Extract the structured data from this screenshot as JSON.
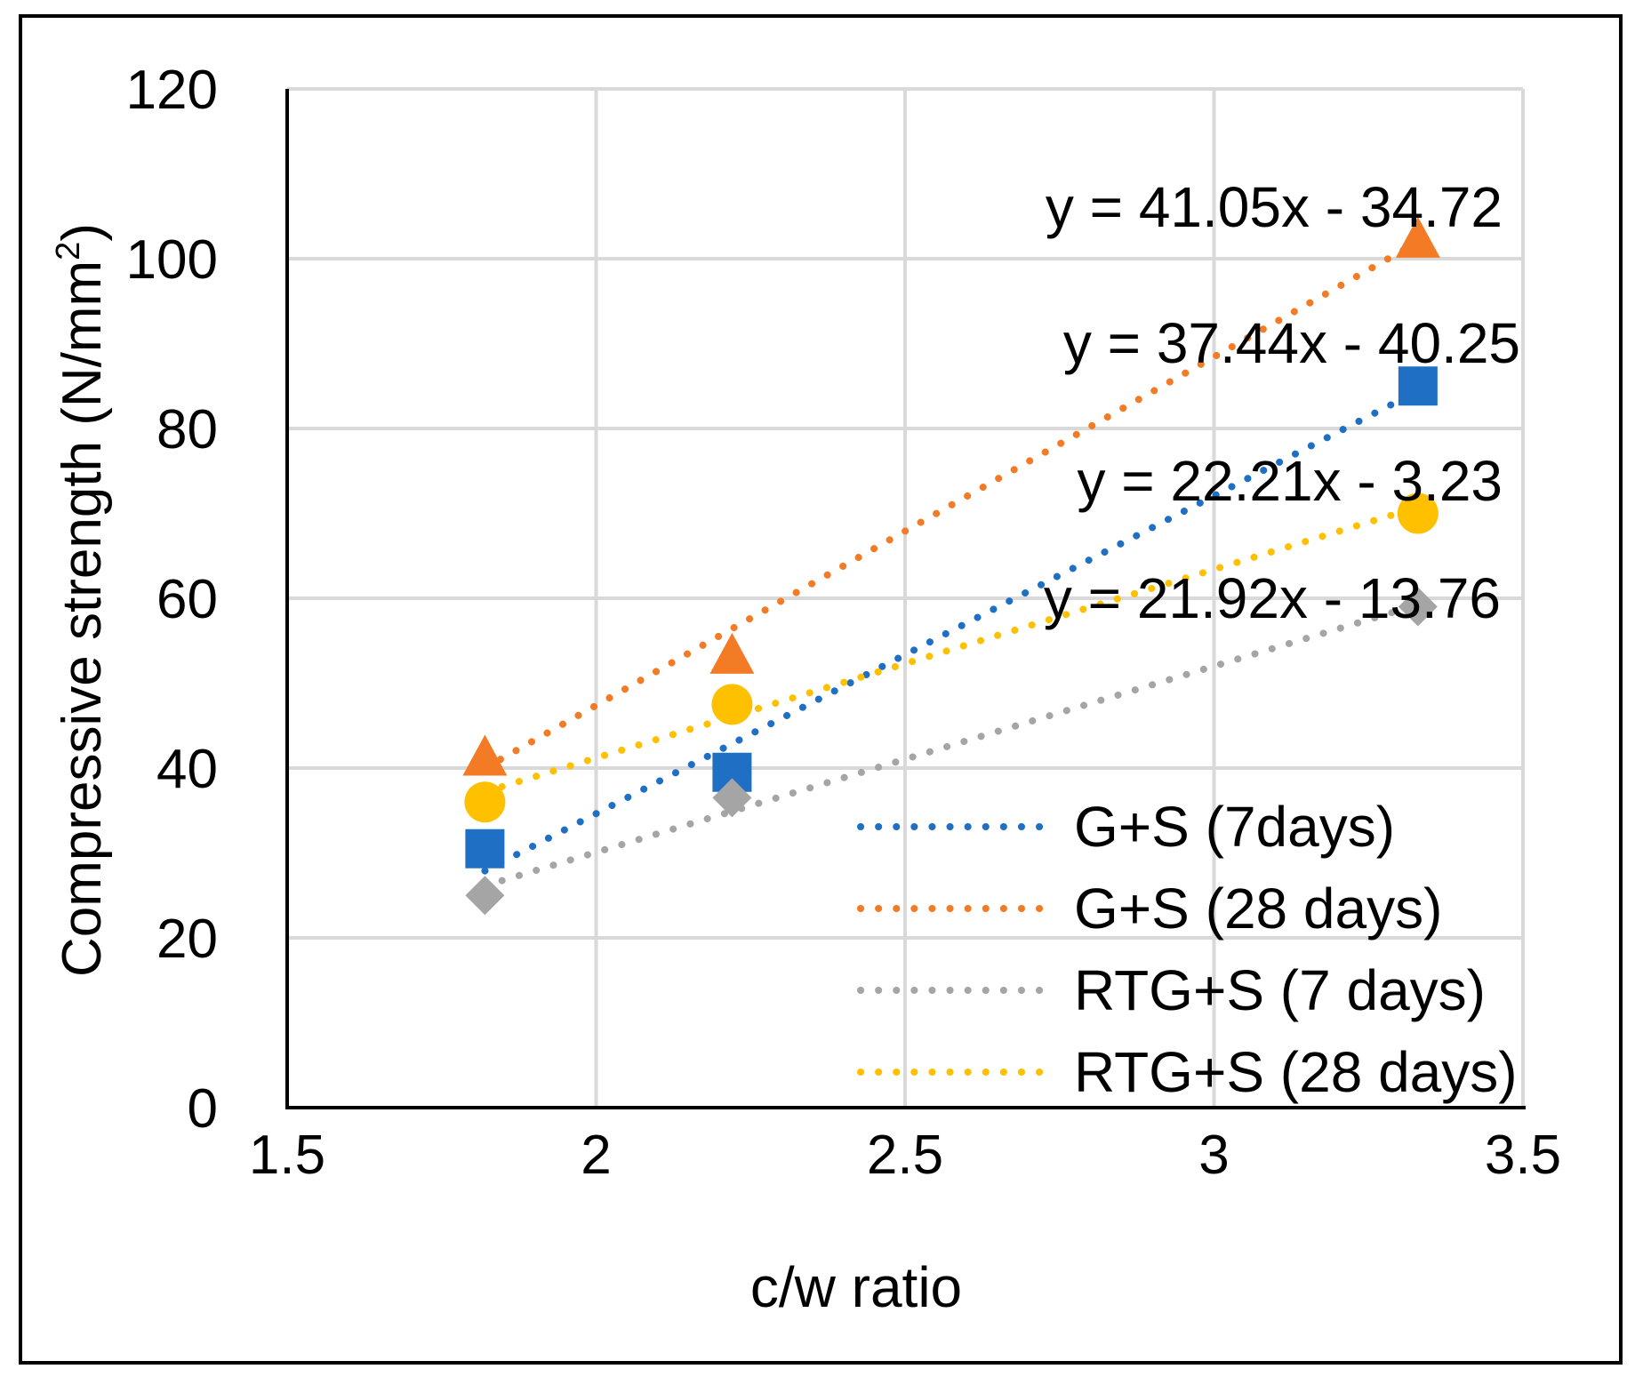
{
  "chart_data": {
    "type": "scatter",
    "xlabel": "c/w ratio",
    "ylabel": "Compressive strength (N/mm",
    "ylabel_sup": "2",
    "ylabel_close": ")",
    "xlim": [
      1.5,
      3.5
    ],
    "ylim": [
      0,
      120
    ],
    "x_ticks": [
      1.5,
      2,
      2.5,
      3,
      3.5
    ],
    "x_tick_labels": [
      "1.5",
      "2",
      "2.5",
      "3",
      "3.5"
    ],
    "y_ticks": [
      0,
      20,
      40,
      60,
      80,
      100,
      120
    ],
    "y_tick_labels": [
      "0",
      "20",
      "40",
      "60",
      "80",
      "100",
      "120"
    ],
    "grid": true,
    "legend_position": "bottom-right",
    "series": [
      {
        "name": "G+S (7days)",
        "color": "#1f6fc5",
        "marker": "square",
        "x": [
          1.82,
          2.22,
          3.33
        ],
        "y": [
          30.5,
          39.5,
          85.0
        ],
        "trend_slope": 37.44,
        "trend_intercept": -40.25,
        "equation": "y = 37.44x - 40.25"
      },
      {
        "name": "G+S (28 days)",
        "color": "#f47b25",
        "marker": "triangle",
        "x": [
          1.82,
          2.22,
          3.33
        ],
        "y": [
          41.0,
          53.0,
          102.0
        ],
        "trend_slope": 41.05,
        "trend_intercept": -34.72,
        "equation": "y = 41.05x - 34.72"
      },
      {
        "name": "RTG+S (7 days)",
        "color": "#a5a5a5",
        "marker": "diamond",
        "x": [
          1.82,
          2.22,
          3.33
        ],
        "y": [
          25.0,
          36.5,
          59.0
        ],
        "trend_slope": 21.92,
        "trend_intercept": -13.76,
        "equation": "y = 21.92x - 13.76"
      },
      {
        "name": "RTG+S (28 days)",
        "color": "#ffc000",
        "marker": "circle",
        "x": [
          1.82,
          2.22,
          3.33
        ],
        "y": [
          36.0,
          47.5,
          70.0
        ],
        "trend_slope": 22.21,
        "trend_intercept": -3.23,
        "equation": "y = 22.21x - 3.23"
      }
    ]
  }
}
